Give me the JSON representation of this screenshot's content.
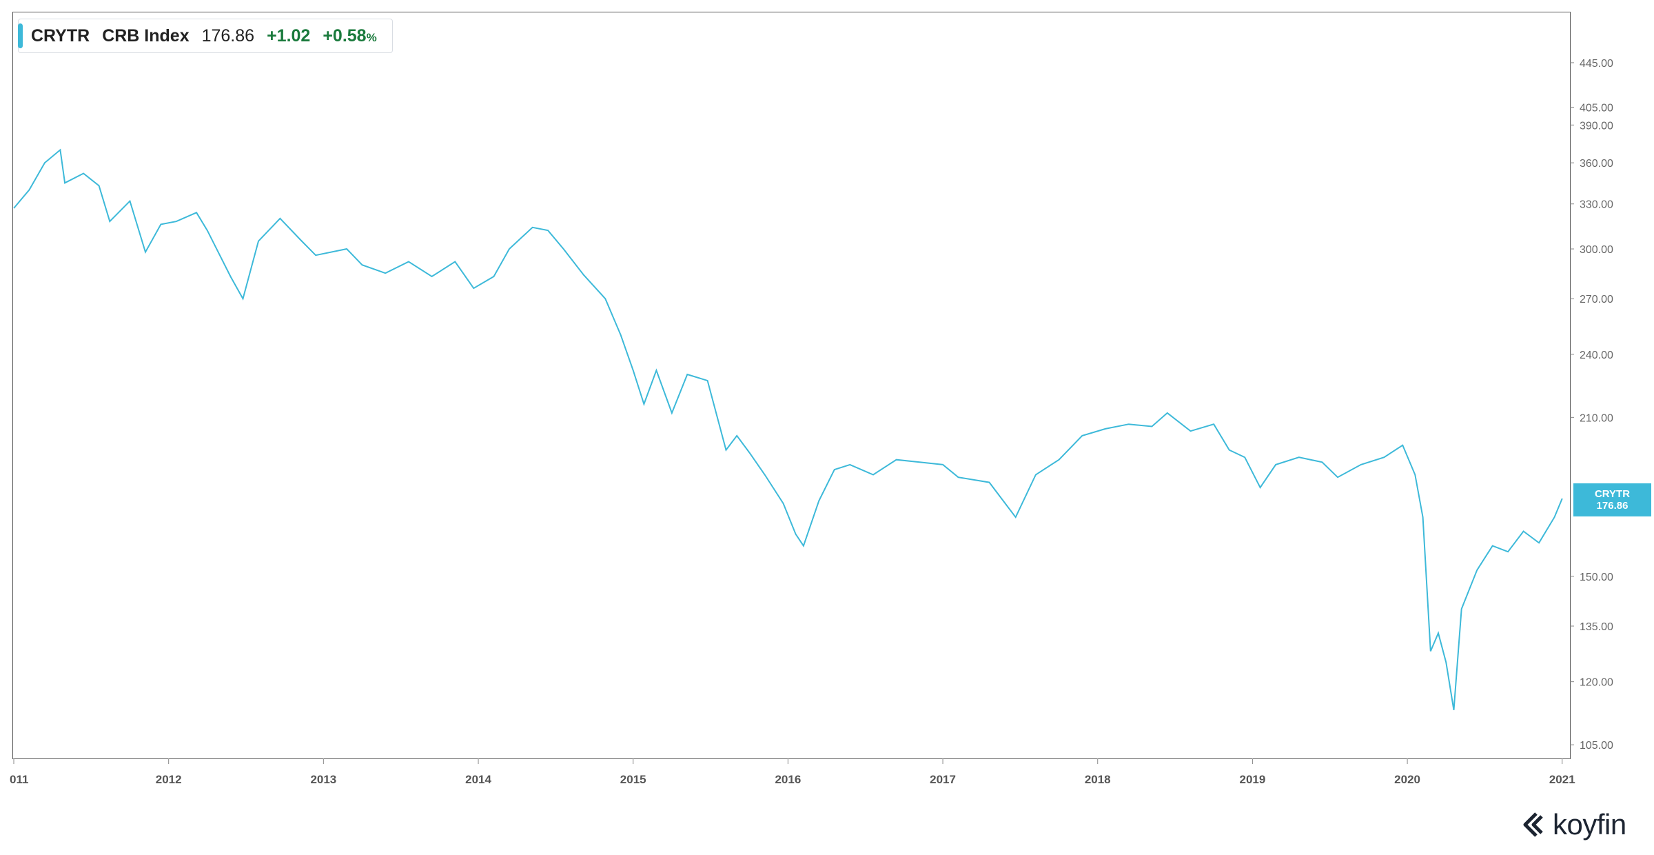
{
  "legend": {
    "symbol": "CRYTR",
    "name": "CRB Index",
    "last": "176.86",
    "change": "+1.02",
    "change_pct": "+0.58",
    "pct_sign": "%",
    "series_color": "#3db9d9",
    "positive_color": "#1a7a3c"
  },
  "badge": {
    "symbol": "CRYTR",
    "value": "176.86"
  },
  "logo": {
    "text": "koyfin",
    "icon": "koyfin-logo-icon"
  },
  "chart_data": {
    "type": "line",
    "scale": "log",
    "ylim": [
      102,
      495
    ],
    "y_ticks": [
      "445.00",
      "405.00",
      "390.00",
      "360.00",
      "330.00",
      "300.00",
      "270.00",
      "240.00",
      "210.00",
      "150.00",
      "135.00",
      "120.00",
      "105.00"
    ],
    "x_ticks": [
      "011",
      "2012",
      "2013",
      "2014",
      "2015",
      "2016",
      "2017",
      "2018",
      "2019",
      "2020",
      "2021"
    ],
    "x_range": [
      2011.0,
      2021.05
    ],
    "series": [
      {
        "color": "#3db9d9",
        "x": [
          2011.0,
          2011.1,
          2011.2,
          2011.3,
          2011.33,
          2011.45,
          2011.55,
          2011.62,
          2011.75,
          2011.85,
          2011.95,
          2012.05,
          2012.18,
          2012.25,
          2012.4,
          2012.48,
          2012.58,
          2012.72,
          2012.85,
          2012.95,
          2013.15,
          2013.25,
          2013.4,
          2013.55,
          2013.7,
          2013.85,
          2013.97,
          2014.1,
          2014.2,
          2014.35,
          2014.45,
          2014.55,
          2014.68,
          2014.82,
          2014.92,
          2015.0,
          2015.07,
          2015.15,
          2015.25,
          2015.35,
          2015.48,
          2015.6,
          2015.67,
          2015.75,
          2015.85,
          2015.97,
          2016.05,
          2016.1,
          2016.2,
          2016.3,
          2016.4,
          2016.55,
          2016.7,
          2016.85,
          2017.0,
          2017.1,
          2017.3,
          2017.47,
          2017.6,
          2017.75,
          2017.9,
          2018.05,
          2018.2,
          2018.35,
          2018.45,
          2018.6,
          2018.75,
          2018.85,
          2018.95,
          2019.05,
          2019.15,
          2019.3,
          2019.45,
          2019.55,
          2019.7,
          2019.85,
          2019.97,
          2020.05,
          2020.1,
          2020.15,
          2020.2,
          2020.25,
          2020.3,
          2020.35,
          2020.45,
          2020.55,
          2020.65,
          2020.75,
          2020.85,
          2020.95,
          2021.0
        ],
        "values": [
          327,
          340,
          360,
          370,
          345,
          352,
          343,
          318,
          332,
          298,
          316,
          318,
          324,
          312,
          283,
          270,
          305,
          320,
          306,
          296,
          300,
          290,
          285,
          292,
          283,
          292,
          276,
          283,
          300,
          314,
          312,
          300,
          284,
          270,
          250,
          232,
          216,
          232,
          212,
          230,
          227,
          196,
          202,
          195,
          186,
          175,
          164,
          160,
          176,
          188,
          190,
          186,
          192,
          191,
          190,
          185,
          183,
          170,
          186,
          192,
          202,
          205,
          207,
          206,
          212,
          204,
          207,
          196,
          193,
          181,
          190,
          193,
          191,
          185,
          190,
          193,
          198,
          186,
          170,
          128,
          133,
          125,
          113,
          140,
          152,
          160,
          158,
          165,
          161,
          170,
          176.86
        ]
      }
    ]
  }
}
